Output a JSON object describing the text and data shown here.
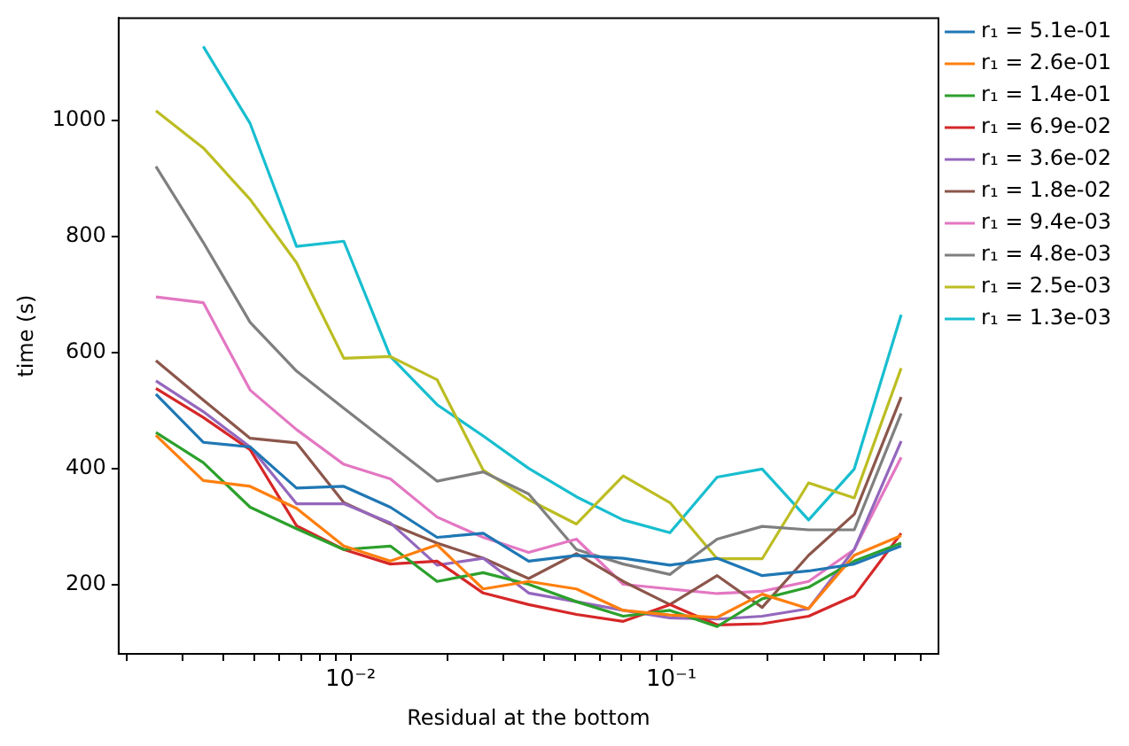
{
  "chart_data": {
    "type": "line",
    "xlabel": "Residual at the bottom",
    "ylabel": "time (s)",
    "log": "x",
    "grid": false,
    "legend": "top right",
    "marker": "none",
    "line_style": "solid",
    "x": [
      0.00247,
      0.00347,
      0.00486,
      0.00678,
      0.00952,
      0.0133,
      0.0186,
      0.0259,
      0.0359,
      0.0506,
      0.0708,
      0.099,
      0.139,
      0.192,
      0.268,
      0.372,
      0.521
    ],
    "xlim": [
      0.00189,
      0.681
    ],
    "xticks": [
      {
        "value": 0.002,
        "label": null
      },
      {
        "value": 0.003,
        "label": null
      },
      {
        "value": 0.004,
        "label": null
      },
      {
        "value": 0.005,
        "label": null
      },
      {
        "value": 0.006,
        "label": null
      },
      {
        "value": 0.007,
        "label": null
      },
      {
        "value": 0.008,
        "label": null
      },
      {
        "value": 0.009,
        "label": null
      },
      {
        "value": 0.01,
        "label": "10⁻²"
      },
      {
        "value": 0.02,
        "label": null
      },
      {
        "value": 0.03,
        "label": null
      },
      {
        "value": 0.04,
        "label": null
      },
      {
        "value": 0.05,
        "label": null
      },
      {
        "value": 0.06,
        "label": null
      },
      {
        "value": 0.07,
        "label": null
      },
      {
        "value": 0.08,
        "label": null
      },
      {
        "value": 0.09,
        "label": null
      },
      {
        "value": 0.1,
        "label": "10⁻¹"
      },
      {
        "value": 0.2,
        "label": null
      },
      {
        "value": 0.3,
        "label": null
      },
      {
        "value": 0.4,
        "label": null
      },
      {
        "value": 0.5,
        "label": null
      },
      {
        "value": 0.6,
        "label": null
      }
    ],
    "ylim": [
      80,
      1177
    ],
    "yticks": [
      200,
      400,
      600,
      800,
      1000
    ],
    "series": [
      {
        "name": "r₁ = 5.1e-01",
        "color": "#1f77b4",
        "values": [
          528,
          445,
          437,
          366,
          369,
          333,
          281,
          288,
          240,
          250,
          245,
          233,
          245,
          215,
          223,
          235,
          266
        ]
      },
      {
        "name": "r₁ = 2.6e-01",
        "color": "#ff7f0e",
        "values": [
          457,
          379,
          369,
          331,
          266,
          240,
          268,
          192,
          205,
          192,
          155,
          147,
          143,
          183,
          158,
          250,
          284
        ]
      },
      {
        "name": "r₁ = 1.4e-01",
        "color": "#2ca02c",
        "values": [
          462,
          410,
          333,
          296,
          260,
          266,
          205,
          220,
          200,
          170,
          145,
          155,
          127,
          175,
          195,
          240,
          271
        ]
      },
      {
        "name": "r₁ = 6.9e-02",
        "color": "#d62728",
        "values": [
          538,
          488,
          432,
          301,
          260,
          235,
          240,
          185,
          165,
          148,
          136,
          165,
          130,
          132,
          145,
          180,
          288
        ]
      },
      {
        "name": "r₁ = 3.6e-02",
        "color": "#9467bd",
        "values": [
          551,
          498,
          437,
          339,
          339,
          306,
          233,
          245,
          185,
          170,
          155,
          142,
          140,
          145,
          158,
          260,
          447
        ]
      },
      {
        "name": "r₁ = 1.8e-02",
        "color": "#8c564b",
        "values": [
          586,
          518,
          452,
          444,
          341,
          304,
          271,
          245,
          210,
          253,
          205,
          165,
          215,
          160,
          250,
          321,
          523
        ]
      },
      {
        "name": "r₁ = 9.4e-03",
        "color": "#e377c2",
        "values": [
          696,
          686,
          535,
          467,
          407,
          382,
          316,
          281,
          255,
          278,
          200,
          192,
          184,
          188,
          205,
          260,
          419
        ]
      },
      {
        "name": "r₁ = 4.8e-03",
        "color": "#7f7f7f",
        "values": [
          921,
          790,
          652,
          568,
          504,
          441,
          378,
          394,
          356,
          260,
          235,
          217,
          278,
          300,
          294,
          294,
          495
        ]
      },
      {
        "name": "r₁ = 2.5e-03",
        "color": "#bcbd22",
        "values": [
          1017,
          953,
          864,
          755,
          590,
          593,
          553,
          397,
          346,
          304,
          387,
          341,
          244,
          244,
          375,
          349,
          573
        ]
      },
      {
        "name": "r₁ = 1.3e-03",
        "color": "#17becf",
        "values": [
          null,
          1128,
          995,
          783,
          792,
          593,
          510,
          456,
          400,
          351,
          311,
          289,
          385,
          399,
          311,
          399,
          665
        ]
      }
    ]
  }
}
